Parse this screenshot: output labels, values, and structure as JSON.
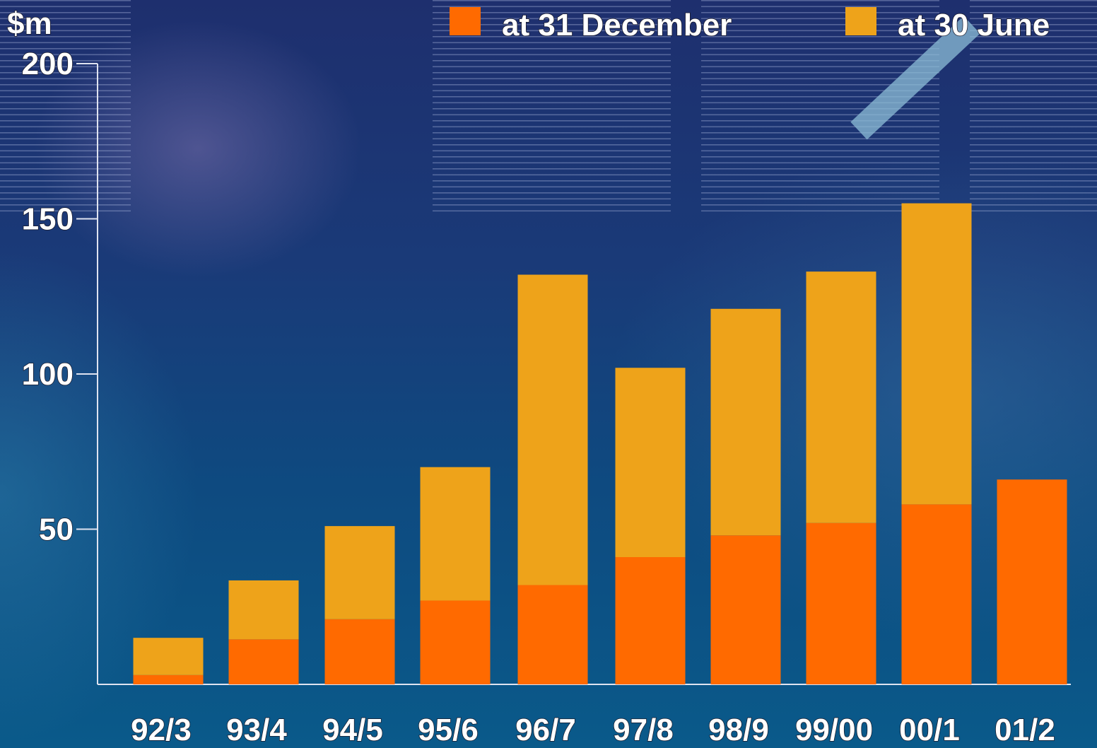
{
  "colors": {
    "december": "#ff6a00",
    "june": "#eea31a",
    "axis": "#dfe3f0"
  },
  "chart_data": {
    "type": "bar",
    "stacked": true,
    "ylabel": "$m",
    "ylim": [
      0,
      200
    ],
    "yticks": [
      50,
      100,
      150,
      200
    ],
    "legend_position": "top-right",
    "categories": [
      "92/3",
      "93/4",
      "94/5",
      "95/6",
      "96/7",
      "97/8",
      "98/9",
      "99/00",
      "00/1",
      "01/2"
    ],
    "series": [
      {
        "name": "at 31 December",
        "color": "#ff6a00",
        "values": [
          3,
          14.5,
          21,
          27,
          32,
          41,
          48,
          52,
          58,
          66
        ]
      },
      {
        "name": "at 30 June",
        "color": "#eea31a",
        "values": [
          12,
          19,
          30,
          43,
          100,
          61,
          73,
          81,
          97,
          0
        ]
      }
    ]
  }
}
